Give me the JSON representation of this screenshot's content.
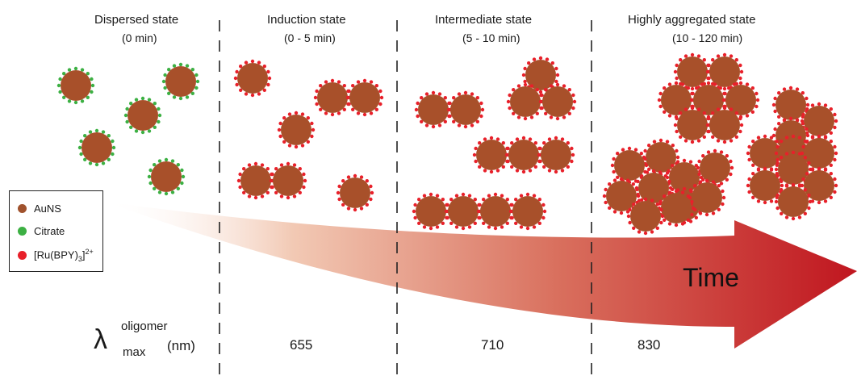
{
  "stages": [
    {
      "title": "Dispersed state",
      "time": "(0 min)",
      "lambda": ""
    },
    {
      "title": "Induction state",
      "time": "(0 - 5 min)",
      "lambda": "655"
    },
    {
      "title": "Intermediate state",
      "time": "(5 - 10 min)",
      "lambda": "710"
    },
    {
      "title": "Highly aggregated state",
      "time": "(10 - 120 min)",
      "lambda": "830"
    }
  ],
  "legend": {
    "items": [
      {
        "label": "AuNS",
        "color": "#a0522d"
      },
      {
        "label": "Citrate",
        "color": "#3cb043"
      },
      {
        "label": "[Ru(BPY)3]2+",
        "color": "#e8202a"
      }
    ],
    "ru_main": "[Ru(BPY)",
    "ru_sub": "3",
    "ru_close": "]",
    "ru_sup": "2+"
  },
  "arrow": {
    "label": "Time",
    "color_start": "#ffffff",
    "color_end": "#c0161f"
  },
  "lambda_row": {
    "symbol": "λ",
    "superscript": "oligomer",
    "subscript": "max",
    "unit": "(nm)"
  },
  "colors": {
    "particle": "#a8502a",
    "citrate": "#3cb043",
    "ru": "#e8202a"
  }
}
